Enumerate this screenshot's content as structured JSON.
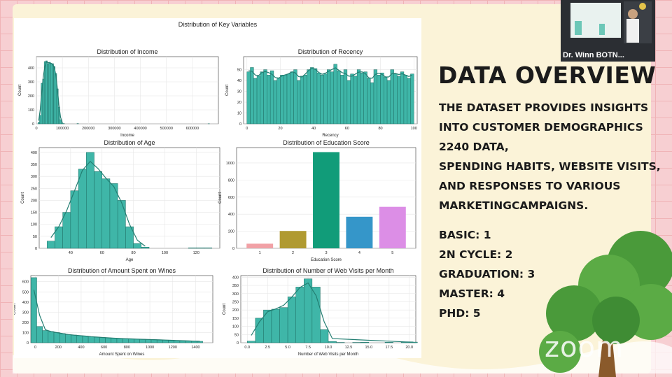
{
  "slide": {
    "heading": "DATA OVERVIEW",
    "description": [
      "THE DATASET PROVIDES INSIGHTS",
      "INTO CUSTOMER DEMOGRAPHICS",
      "2240 DATA,",
      "SPENDING HABITS, WEBSITE VISITS,",
      "AND RESPONSES TO VARIOUS",
      "MARKETINGCAMPAIGNS."
    ],
    "education_levels": [
      "BASIC: 1",
      "2N CYCLE: 2",
      "GRADUATION: 3",
      "MASTER: 4",
      "PHD: 5"
    ]
  },
  "video": {
    "participant_name": "Dr. Winn BOTN..."
  },
  "watermark": {
    "text": "zoom"
  },
  "colors": {
    "teal": "#3fb6a8",
    "teal_dark": "#2a8c80"
  },
  "chart_data": {
    "suptitle": "Distribution of Key Variables",
    "charts": [
      {
        "id": "income",
        "type": "histogram",
        "title": "Distribution of Income",
        "xlabel": "Income",
        "ylabel": "Count",
        "xlim": [
          0,
          700000
        ],
        "ylim": [
          0,
          480
        ],
        "xticks": [
          0,
          100000,
          200000,
          300000,
          400000,
          500000,
          600000
        ],
        "xticklabels": [
          "0",
          "100000",
          "200000",
          "300000",
          "400000",
          "500000",
          "600000"
        ],
        "yticks": [
          0,
          100,
          200,
          300,
          400
        ],
        "bin_width": 6000,
        "bins": [
          [
            6000,
            10
          ],
          [
            12000,
            60
          ],
          [
            18000,
            290
          ],
          [
            24000,
            320
          ],
          [
            30000,
            445
          ],
          [
            36000,
            450
          ],
          [
            42000,
            430
          ],
          [
            48000,
            440
          ],
          [
            54000,
            430
          ],
          [
            60000,
            430
          ],
          [
            66000,
            410
          ],
          [
            72000,
            360
          ],
          [
            78000,
            250
          ],
          [
            84000,
            120
          ],
          [
            90000,
            30
          ],
          [
            96000,
            8
          ],
          [
            102000,
            2
          ],
          [
            156000,
            2
          ],
          [
            660000,
            1
          ]
        ],
        "kde": true,
        "color": "#3fb6a8"
      },
      {
        "id": "recency",
        "type": "histogram",
        "title": "Distribution of Recency",
        "xlabel": "Recency",
        "ylabel": "Count",
        "xlim": [
          -2,
          102
        ],
        "ylim": [
          0,
          62
        ],
        "xticks": [
          0,
          20,
          40,
          60,
          80,
          100
        ],
        "xticklabels": [
          "0",
          "20",
          "40",
          "60",
          "80",
          "100"
        ],
        "yticks": [
          0,
          10,
          20,
          30,
          40,
          50
        ],
        "bin_width": 2,
        "values": [
          48,
          52,
          42,
          44,
          48,
          50,
          45,
          49,
          40,
          42,
          45,
          45,
          46,
          48,
          50,
          40,
          44,
          45,
          50,
          52,
          51,
          47,
          45,
          46,
          50,
          48,
          55,
          49,
          45,
          50,
          40,
          46,
          44,
          50,
          47,
          48,
          42,
          38,
          50,
          45,
          47,
          43,
          40,
          50,
          46,
          44,
          48,
          45,
          42,
          46
        ],
        "kde": true,
        "color": "#3fb6a8"
      },
      {
        "id": "age",
        "type": "histogram",
        "title": "Distribution of Age",
        "xlabel": "Age",
        "ylabel": "Count",
        "xlim": [
          20,
          135
        ],
        "ylim": [
          0,
          420
        ],
        "xticks": [
          40,
          60,
          80,
          100,
          120
        ],
        "xticklabels": [
          "40",
          "60",
          "80",
          "100",
          "120"
        ],
        "yticks": [
          0,
          50,
          100,
          150,
          200,
          250,
          300,
          350,
          400
        ],
        "bin_width": 5,
        "bins": [
          [
            25,
            30
          ],
          [
            30,
            90
          ],
          [
            35,
            150
          ],
          [
            40,
            240
          ],
          [
            45,
            330
          ],
          [
            50,
            400
          ],
          [
            55,
            320
          ],
          [
            60,
            290
          ],
          [
            65,
            270
          ],
          [
            70,
            200
          ],
          [
            75,
            90
          ],
          [
            80,
            20
          ],
          [
            85,
            5
          ],
          [
            115,
            2
          ],
          [
            120,
            2
          ],
          [
            125,
            2
          ]
        ],
        "kde": true,
        "color": "#3fb6a8"
      },
      {
        "id": "education",
        "type": "bar",
        "title": "Distribution of Education Score",
        "xlabel": "Education Score",
        "ylabel": "Count",
        "categories": [
          "1",
          "2",
          "3",
          "4",
          "5"
        ],
        "values": [
          54,
          203,
          1127,
          370,
          486
        ],
        "ylim": [
          0,
          1180
        ],
        "yticks": [
          0,
          200,
          400,
          600,
          800,
          1000
        ],
        "colors": [
          "#f1a1a6",
          "#b09a31",
          "#119c79",
          "#3596c9",
          "#dc8ee6"
        ]
      },
      {
        "id": "wines",
        "type": "histogram",
        "title": "Distribution of Amount Spent on Wines",
        "xlabel": "Amount Spent on Wines",
        "ylabel": "Count",
        "xlim": [
          -40,
          1550
        ],
        "ylim": [
          0,
          660
        ],
        "xticks": [
          0,
          200,
          400,
          600,
          800,
          1000,
          1200,
          1400
        ],
        "xticklabels": [
          "0",
          "200",
          "400",
          "600",
          "800",
          "1000",
          "1200",
          "1400"
        ],
        "yticks": [
          0,
          100,
          200,
          300,
          400,
          500,
          600
        ],
        "bin_width": 50,
        "values": [
          640,
          160,
          120,
          110,
          100,
          90,
          80,
          75,
          70,
          65,
          60,
          55,
          52,
          48,
          45,
          42,
          40,
          38,
          36,
          34,
          32,
          30,
          28,
          26,
          24,
          22,
          20,
          18,
          16,
          14
        ],
        "kde": true,
        "color": "#3fb6a8"
      },
      {
        "id": "webvisits",
        "type": "histogram",
        "title": "Distribution of Number of Web Visits per Month",
        "xlabel": "Number of Web Visits per Month",
        "ylabel": "Count",
        "xlim": [
          -0.8,
          20.8
        ],
        "ylim": [
          0,
          410
        ],
        "xticks": [
          0,
          2.5,
          5,
          7.5,
          10,
          12.5,
          15,
          17.5,
          20
        ],
        "xticklabels": [
          "0.0",
          "2.5",
          "5.0",
          "7.5",
          "10.0",
          "12.5",
          "15.0",
          "17.5",
          "20.0"
        ],
        "yticks": [
          0,
          50,
          100,
          150,
          200,
          250,
          300,
          350,
          400
        ],
        "bin_width": 1,
        "bins": [
          [
            0,
            10
          ],
          [
            1,
            150
          ],
          [
            2,
            200
          ],
          [
            3,
            205
          ],
          [
            4,
            215
          ],
          [
            5,
            280
          ],
          [
            6,
            340
          ],
          [
            7,
            390
          ],
          [
            8,
            340
          ],
          [
            9,
            80
          ],
          [
            10,
            8
          ],
          [
            11,
            2
          ],
          [
            13,
            2
          ],
          [
            14,
            3
          ],
          [
            17,
            3
          ],
          [
            19,
            4
          ],
          [
            20,
            4
          ]
        ],
        "kde": true,
        "color": "#3fb6a8"
      }
    ]
  }
}
